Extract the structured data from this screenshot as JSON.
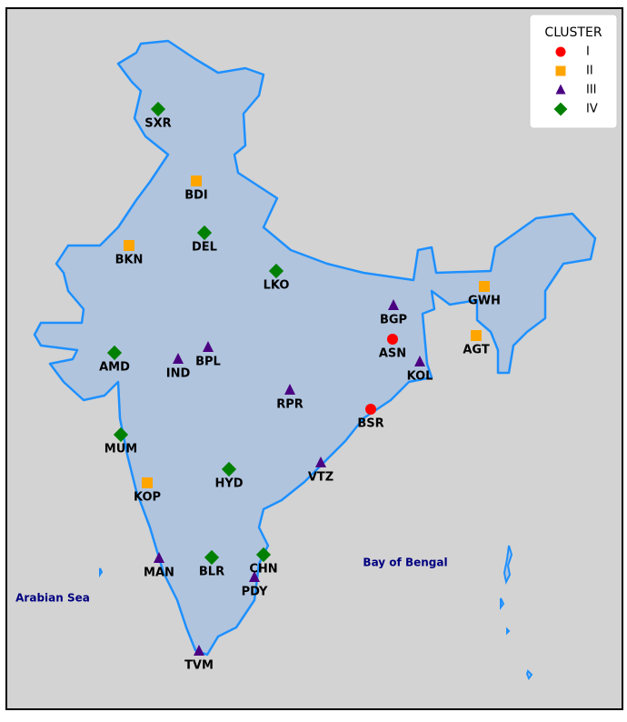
{
  "legend": {
    "title": "CLUSTER",
    "items": [
      {
        "label": "I",
        "color": "#ff0000",
        "marker": "circle",
        "stations": [
          "ASN",
          "BSR"
        ]
      },
      {
        "label": "II",
        "color": "#ffa500",
        "marker": "square",
        "stations": [
          "BDI",
          "BKN",
          "GWH",
          "AGT",
          "KOP"
        ]
      },
      {
        "label": "III",
        "color": "#4b0082",
        "marker": "triangle",
        "stations": [
          "BGP",
          "IND",
          "BPL",
          "KOL",
          "RPR",
          "VTZ",
          "MAN",
          "PDY",
          "TVM"
        ]
      },
      {
        "label": "IV",
        "color": "#008000",
        "marker": "diamond",
        "stations": [
          "SXR",
          "DEL",
          "LKO",
          "AMD",
          "MUM",
          "HYD",
          "BLR",
          "CHN"
        ]
      }
    ]
  },
  "seas": [
    "Arabian Sea",
    "Bay of Bengal"
  ]
}
